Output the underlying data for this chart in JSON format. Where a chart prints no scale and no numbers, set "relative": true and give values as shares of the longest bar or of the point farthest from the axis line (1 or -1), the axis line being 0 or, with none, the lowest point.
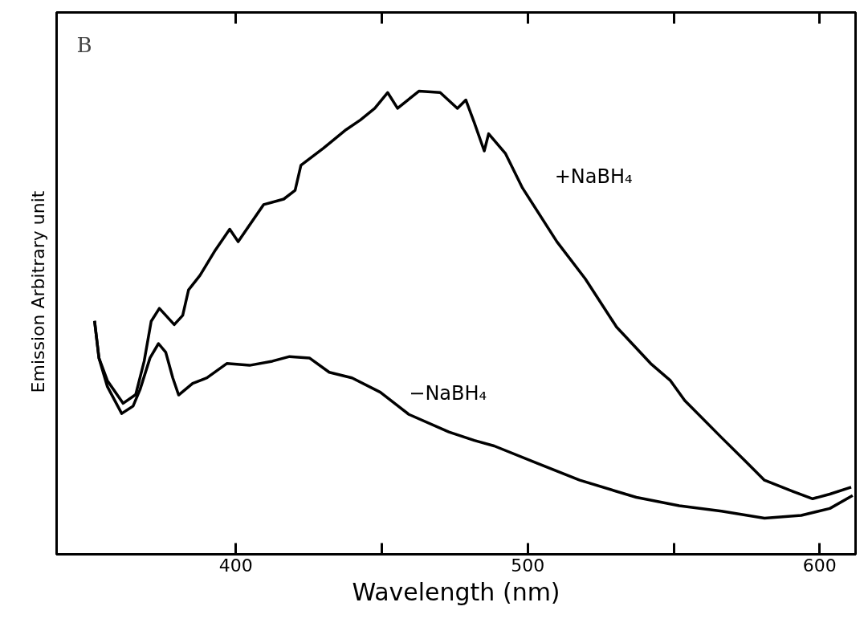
{
  "chart_data": {
    "type": "line",
    "relative": true,
    "xlabel": "Wavelength (nm)",
    "ylabel": "Emission    Arbitrary unit",
    "annotations": [
      "B"
    ],
    "xlim": [
      338.6,
      612.3
    ],
    "xticks": [
      400,
      {
        "value": 450,
        "label": null
      },
      500,
      {
        "value": 550,
        "label": null
      },
      600
    ],
    "grid": false,
    "marker": "none",
    "line_style": "solid",
    "series": [
      {
        "name": "+NaBH₄",
        "color": "#000000",
        "x": [
          351.6,
          353.1,
          356,
          361.4,
          365.7,
          368.6,
          371,
          373.8,
          378.9,
          381.8,
          383.8,
          387.7,
          393,
          397.9,
          400.8,
          409.5,
          416.4,
          420.3,
          422.3,
          430,
          437.8,
          442.7,
          447.6,
          452,
          455.4,
          462.7,
          470,
          475.9,
          478.8,
          481.7,
          485.1,
          486.6,
          492.4,
          498.2,
          510,
          519.7,
          530.4,
          542.1,
          548.9,
          553.8,
          566.4,
          574.3,
          581.1,
          590.8,
          597.6,
          603.5,
          610.8
        ],
        "values": [
          0.504,
          0.424,
          0.375,
          0.326,
          0.345,
          0.417,
          0.503,
          0.531,
          0.496,
          0.516,
          0.571,
          0.602,
          0.657,
          0.702,
          0.675,
          0.755,
          0.767,
          0.786,
          0.84,
          0.877,
          0.917,
          0.938,
          0.963,
          0.997,
          0.963,
          1.0,
          0.997,
          0.963,
          0.981,
          0.932,
          0.871,
          0.908,
          0.865,
          0.791,
          0.675,
          0.595,
          0.491,
          0.412,
          0.375,
          0.332,
          0.252,
          0.203,
          0.16,
          0.136,
          0.12,
          0.13,
          0.145
        ]
      },
      {
        "name": "−NaBH₄",
        "color": "#000000",
        "x": [
          351.6,
          353.1,
          356,
          360.9,
          364.8,
          367.2,
          370.6,
          373.5,
          376,
          378.4,
          380.4,
          385.2,
          390.1,
          396.9,
          404.7,
          412.5,
          418.4,
          425.2,
          432,
          439.8,
          449.5,
          459.3,
          473,
          481.7,
          488.5,
          503.1,
          517.8,
          537.2,
          551.9,
          566.4,
          581.1,
          593.7,
          603.5,
          611.3
        ],
        "values": [
          0.504,
          0.424,
          0.362,
          0.304,
          0.32,
          0.356,
          0.424,
          0.455,
          0.436,
          0.381,
          0.344,
          0.369,
          0.381,
          0.412,
          0.408,
          0.417,
          0.427,
          0.424,
          0.393,
          0.381,
          0.35,
          0.302,
          0.264,
          0.246,
          0.234,
          0.197,
          0.16,
          0.123,
          0.105,
          0.093,
          0.078,
          0.084,
          0.099,
          0.127
        ]
      }
    ]
  }
}
